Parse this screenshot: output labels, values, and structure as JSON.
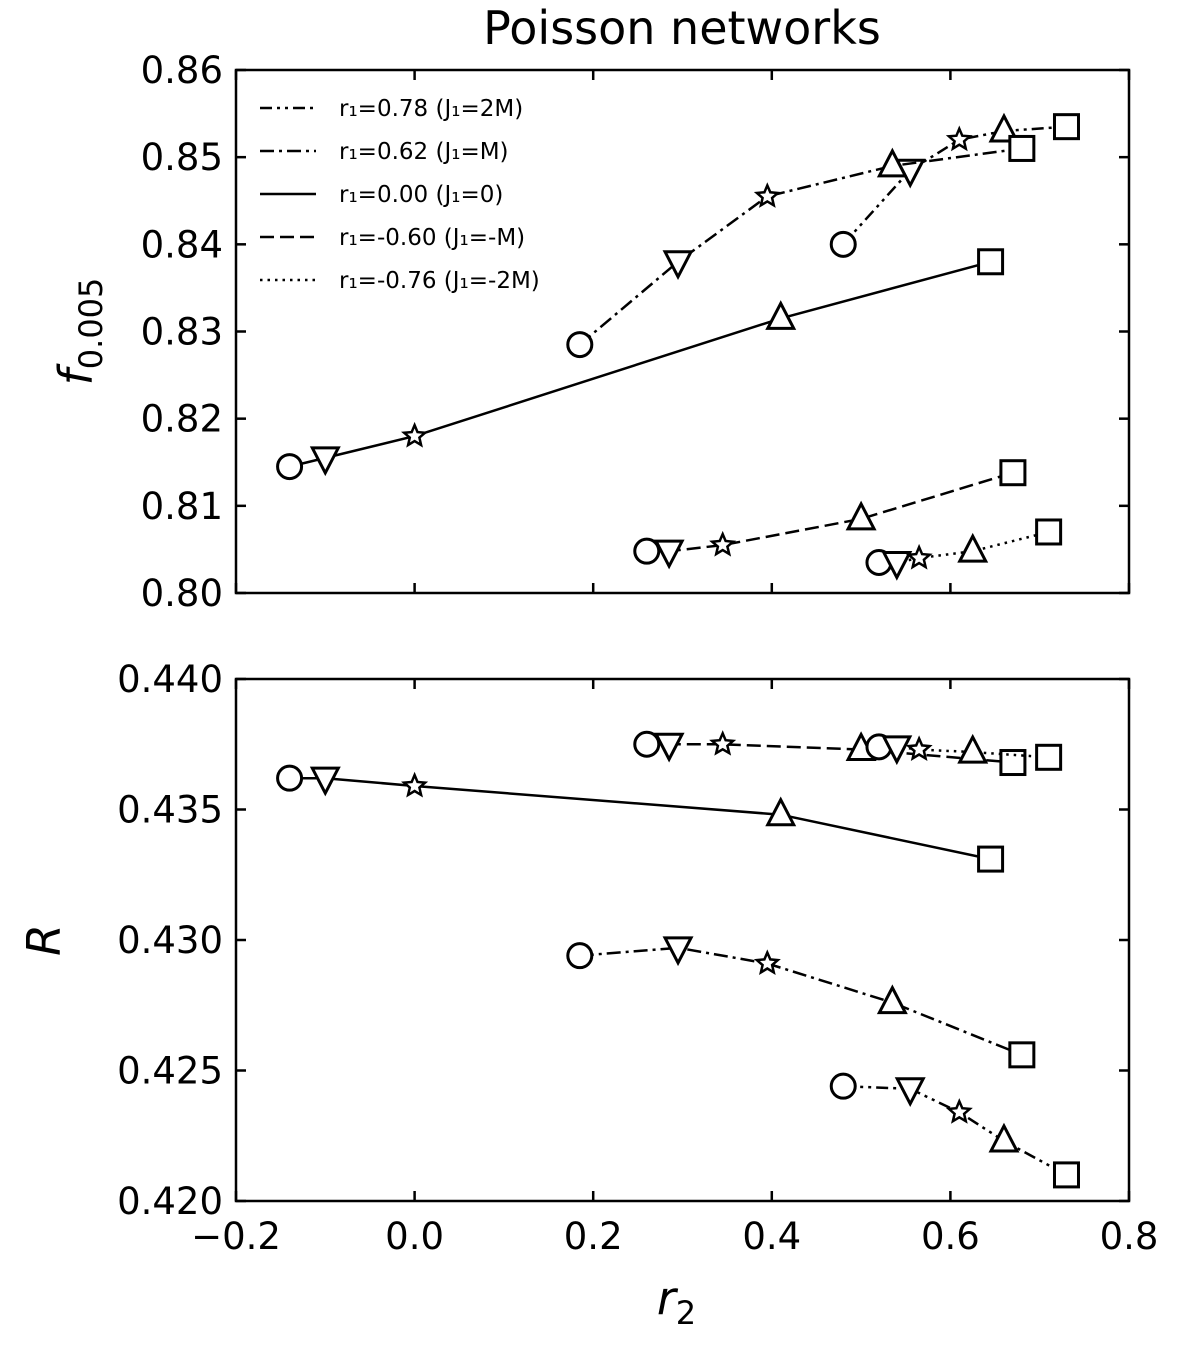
{
  "chart_data": {
    "type": "line",
    "title": "Poisson networks",
    "xlabel": {
      "main": "r",
      "sub": "2"
    },
    "xlim": [
      -0.2,
      0.8
    ],
    "xticks": [
      -0.2,
      0.0,
      0.2,
      0.4,
      0.6,
      0.8
    ],
    "xtick_labels": [
      "−0.2",
      "0.0",
      "0.2",
      "0.4",
      "0.6",
      "0.8"
    ],
    "marker_order": [
      "circle",
      "triangle-down",
      "star",
      "triangle-up",
      "square"
    ],
    "series": [
      {
        "name": "r₁=0.78 (J₁=2M)",
        "style": "dashdotdot",
        "r2": [
          0.48,
          0.555,
          0.61,
          0.66,
          0.73
        ]
      },
      {
        "name": "r₁=0.62 (J₁=M)",
        "style": "dashdot",
        "r2": [
          0.185,
          0.295,
          0.395,
          0.535,
          0.68
        ]
      },
      {
        "name": "r₁=0.00 (J₁=0)",
        "style": "solid",
        "r2": [
          -0.14,
          -0.1,
          0.0,
          0.41,
          0.645
        ]
      },
      {
        "name": "r₁=-0.60 (J₁=-M)",
        "style": "dashed",
        "r2": [
          0.26,
          0.285,
          0.345,
          0.5,
          0.67
        ]
      },
      {
        "name": "r₁=-0.76 (J₁=-2M)",
        "style": "dotted",
        "r2": [
          0.52,
          0.54,
          0.565,
          0.625,
          0.71
        ]
      }
    ],
    "panels": [
      {
        "ylabel": {
          "main": "f",
          "sub": "0.005"
        },
        "ylim": [
          0.8,
          0.86
        ],
        "yticks": [
          0.8,
          0.81,
          0.82,
          0.83,
          0.84,
          0.85,
          0.86
        ],
        "ytick_labels": [
          "0.80",
          "0.81",
          "0.82",
          "0.83",
          "0.84",
          "0.85",
          "0.86"
        ],
        "legend": "top-left",
        "values": [
          [
            0.84,
            0.8485,
            0.852,
            0.853,
            0.8535
          ],
          [
            0.8285,
            0.838,
            0.8455,
            0.849,
            0.851
          ],
          [
            0.8145,
            0.8155,
            0.818,
            0.8315,
            0.838
          ],
          [
            0.8048,
            0.8048,
            0.8055,
            0.8085,
            0.8138
          ],
          [
            0.8035,
            0.8035,
            0.804,
            0.8048,
            0.807
          ]
        ]
      },
      {
        "ylabel": {
          "main": "R",
          "sub": ""
        },
        "ylim": [
          0.42,
          0.44
        ],
        "yticks": [
          0.42,
          0.425,
          0.43,
          0.435,
          0.44
        ],
        "ytick_labels": [
          "0.420",
          "0.425",
          "0.430",
          "0.435",
          "0.440"
        ],
        "legend": "none",
        "values": [
          [
            0.4244,
            0.4243,
            0.4234,
            0.4223,
            0.421
          ],
          [
            0.4294,
            0.4297,
            0.4291,
            0.4276,
            0.4256
          ],
          [
            0.4362,
            0.4362,
            0.4359,
            0.4348,
            0.4331
          ],
          [
            0.4375,
            0.4375,
            0.4375,
            0.4373,
            0.4368
          ],
          [
            0.4374,
            0.4374,
            0.4373,
            0.4372,
            0.437
          ]
        ]
      }
    ]
  }
}
